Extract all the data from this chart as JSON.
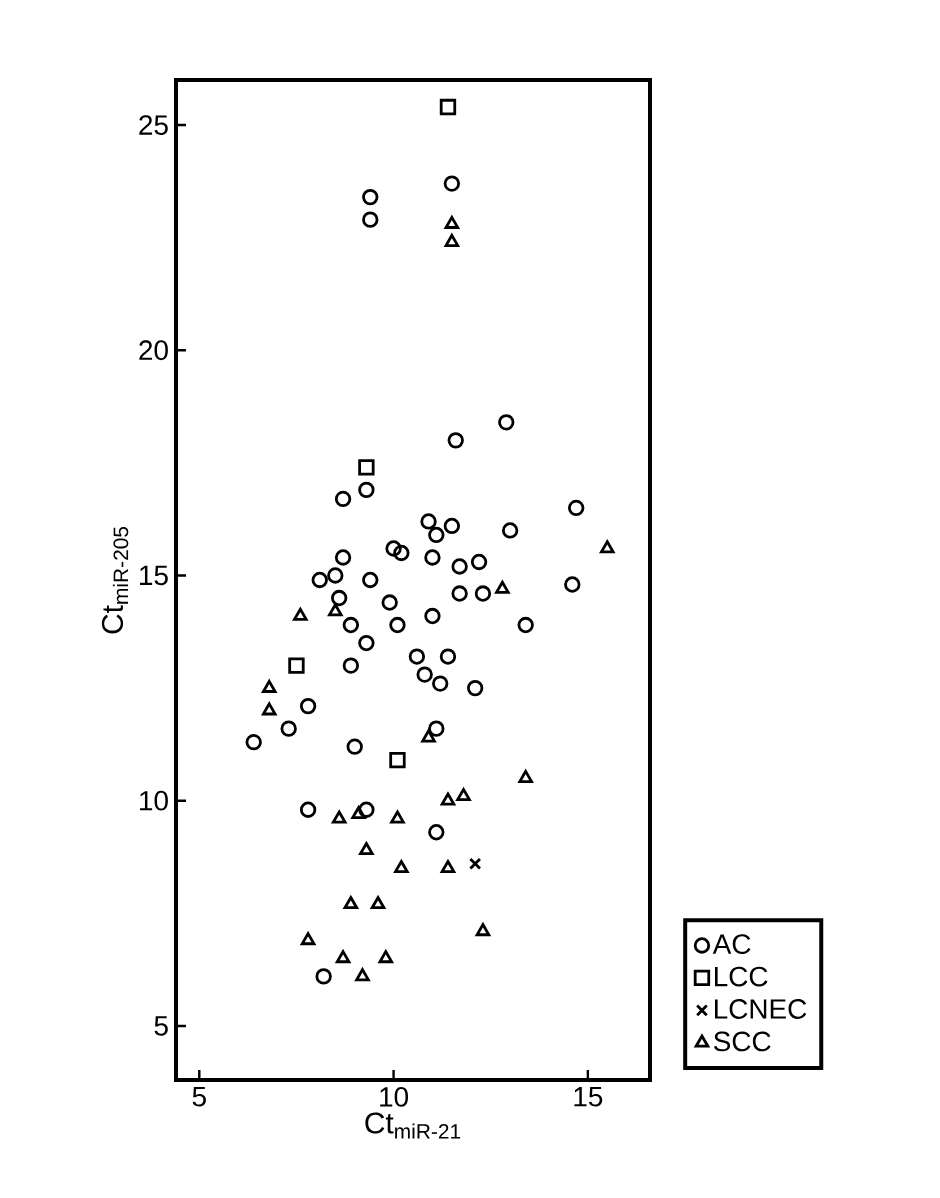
{
  "chart_data": {
    "type": "scatter",
    "xlabel": "Ct$_{miR-21}$",
    "ylabel": "Ct$_{miR-205}$",
    "xlim": [
      4.4,
      16.6
    ],
    "ylim": [
      3.8,
      26
    ],
    "xticks": [
      5,
      10,
      15
    ],
    "yticks": [
      5,
      10,
      15,
      20,
      25
    ],
    "legend": "right",
    "grid": false,
    "series": [
      {
        "name": "AC",
        "color": "#000000",
        "marker": "circle",
        "x": [
          11.5,
          9.4,
          9.4,
          12.9,
          11.6,
          9.3,
          8.7,
          14.7,
          13.0,
          10.9,
          11.5,
          11.1,
          10.0,
          10.2,
          11.0,
          11.7,
          12.2,
          8.7,
          8.1,
          8.5,
          9.4,
          12.3,
          11.7,
          8.6,
          9.9,
          14.6,
          8.9,
          10.1,
          11.0,
          13.4,
          9.3,
          8.9,
          10.6,
          11.4,
          10.8,
          11.2,
          12.1,
          7.8,
          7.3,
          6.4,
          9.0,
          11.1,
          7.8,
          9.3,
          11.1,
          8.2
        ],
        "values": [
          23.7,
          23.4,
          22.9,
          18.4,
          18.0,
          16.9,
          16.7,
          16.5,
          16.0,
          16.2,
          16.1,
          15.9,
          15.6,
          15.5,
          15.4,
          15.2,
          15.3,
          15.4,
          14.9,
          15.0,
          14.9,
          14.6,
          14.6,
          14.5,
          14.4,
          14.8,
          13.9,
          13.9,
          14.1,
          13.9,
          13.5,
          13.0,
          13.2,
          13.2,
          12.8,
          12.6,
          12.5,
          12.1,
          11.6,
          11.3,
          11.2,
          11.6,
          9.8,
          9.8,
          9.3,
          6.1
        ]
      },
      {
        "name": "LCC",
        "color": "#000000",
        "marker": "square",
        "x": [
          11.4,
          9.3,
          7.5,
          10.1
        ],
        "values": [
          25.4,
          17.4,
          13.0,
          10.9
        ]
      },
      {
        "name": "LCNEC",
        "color": "#000000",
        "marker": "cross",
        "x": [
          12.1
        ],
        "values": [
          8.6
        ]
      },
      {
        "name": "SCC",
        "color": "#000000",
        "marker": "triangle",
        "x": [
          11.5,
          11.5,
          15.5,
          12.8,
          7.6,
          8.5,
          6.8,
          6.8,
          10.9,
          8.6,
          9.1,
          10.1,
          11.4,
          11.8,
          13.4,
          9.3,
          10.2,
          11.4,
          8.9,
          9.6,
          12.3,
          7.8,
          8.7,
          9.2,
          9.8
        ],
        "values": [
          22.8,
          22.4,
          15.6,
          14.7,
          14.1,
          14.2,
          12.5,
          12.0,
          11.4,
          9.6,
          9.7,
          9.6,
          10.0,
          10.1,
          10.5,
          8.9,
          8.5,
          8.5,
          7.7,
          7.7,
          7.1,
          6.9,
          6.5,
          6.1,
          6.5
        ]
      }
    ]
  }
}
